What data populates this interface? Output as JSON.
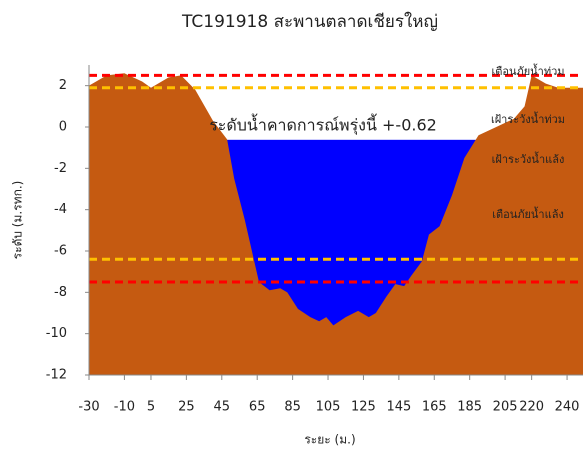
{
  "chart_data": {
    "type": "cross-section",
    "title": "TC191918 สะพานตลาดเชียรใหญ่",
    "x_label": "ระยะ (ม.)",
    "y_label": "ระดับ (ม.รทก.)",
    "annotation": "ระดับน้ำคาดการณ์พรุ่งนี้ +-0.62",
    "water_level": -0.62,
    "water_color": "#0000ff",
    "ground": {
      "color": "#c55a11",
      "x": [
        -30,
        -20,
        -10,
        0,
        5,
        15,
        22,
        30,
        40,
        48,
        52,
        58,
        62,
        66,
        72,
        78,
        82,
        88,
        95,
        100,
        104,
        108,
        115,
        122,
        128,
        132,
        138,
        143,
        148,
        152,
        158,
        162,
        168,
        175,
        182,
        190,
        200,
        210,
        216,
        220,
        228,
        235,
        249
      ],
      "y": [
        2.0,
        2.5,
        2.6,
        2.2,
        1.9,
        2.4,
        2.5,
        1.8,
        0.3,
        -0.6,
        -2.5,
        -4.5,
        -6,
        -7.5,
        -7.9,
        -7.8,
        -8,
        -8.8,
        -9.2,
        -9.4,
        -9.2,
        -9.6,
        -9.2,
        -8.9,
        -9.2,
        -9.0,
        -8.2,
        -7.6,
        -7.7,
        -7.2,
        -6.5,
        -5.2,
        -4.8,
        -3.3,
        -1.5,
        -0.4,
        0,
        0.4,
        1.0,
        2.5,
        2.1,
        1.9,
        1.9
      ]
    },
    "thresholds": [
      {
        "name": "เตือนภัยน้ำท่วม",
        "value": 2.5,
        "color": "#ff0000"
      },
      {
        "name": "เฝ้าระวังน้ำท่วม",
        "value": 1.9,
        "color": "#ffc000"
      },
      {
        "name": "เฝ้าระวังน้ำแล้ง",
        "value": -6.4,
        "color": "#ffc000"
      },
      {
        "name": "เตือนภัยน้ำแล้ง",
        "value": -7.5,
        "color": "#ff0000"
      }
    ],
    "xlim": [
      -30,
      249
    ],
    "xticks": [
      -30,
      -10,
      5,
      25,
      45,
      65,
      85,
      105,
      125,
      145,
      165,
      185,
      205,
      220,
      240
    ],
    "ylim": [
      -12,
      3
    ],
    "yticks": [
      2,
      0,
      -2,
      -4,
      -6,
      -8,
      -10,
      -12
    ]
  }
}
